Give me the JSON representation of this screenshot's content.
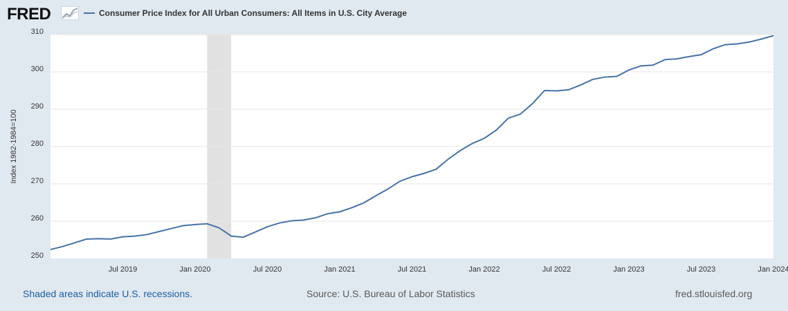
{
  "header": {
    "logo_text": "FRED",
    "series_title": "Consumer Price Index for All Urban Consumers: All Items in U.S. City Average"
  },
  "footer": {
    "note": "Shaded areas indicate U.S. recessions.",
    "source": "Source: U.S. Bureau of Labor Statistics",
    "site": "fred.stlouisfed.org"
  },
  "colors": {
    "background": "#e1e9f0",
    "plot_background": "#ffffff",
    "line": "#4572a7",
    "recession": "#e1e1e1",
    "gridline": "#e6e6e6",
    "link": "#1a5ea8"
  },
  "chart_data": {
    "type": "line",
    "title": "",
    "xlabel": "",
    "ylabel": "Index 1982-1984=100",
    "ylim": [
      250,
      310
    ],
    "yticks": [
      250,
      260,
      270,
      280,
      290,
      300,
      310
    ],
    "xlim": [
      "2019-01",
      "2024-01"
    ],
    "xticks": [
      {
        "date": "2019-07",
        "label": "Jul 2019"
      },
      {
        "date": "2020-01",
        "label": "Jan 2020"
      },
      {
        "date": "2020-07",
        "label": "Jul 2020"
      },
      {
        "date": "2021-01",
        "label": "Jan 2021"
      },
      {
        "date": "2021-07",
        "label": "Jul 2021"
      },
      {
        "date": "2022-01",
        "label": "Jan 2022"
      },
      {
        "date": "2022-07",
        "label": "Jul 2022"
      },
      {
        "date": "2023-01",
        "label": "Jan 2023"
      },
      {
        "date": "2023-07",
        "label": "Jul 2023"
      },
      {
        "date": "2024-01",
        "label": "Jan 2024"
      }
    ],
    "grid": true,
    "recessions": [
      {
        "start": "2020-02",
        "end": "2020-04"
      }
    ],
    "series": [
      {
        "name": "Consumer Price Index for All Urban Consumers: All Items in U.S. City Average",
        "x": [
          "2019-01",
          "2019-02",
          "2019-03",
          "2019-04",
          "2019-05",
          "2019-06",
          "2019-07",
          "2019-08",
          "2019-09",
          "2019-10",
          "2019-11",
          "2019-12",
          "2020-01",
          "2020-02",
          "2020-03",
          "2020-04",
          "2020-05",
          "2020-06",
          "2020-07",
          "2020-08",
          "2020-09",
          "2020-10",
          "2020-11",
          "2020-12",
          "2021-01",
          "2021-02",
          "2021-03",
          "2021-04",
          "2021-05",
          "2021-06",
          "2021-07",
          "2021-08",
          "2021-09",
          "2021-10",
          "2021-11",
          "2021-12",
          "2022-01",
          "2022-02",
          "2022-03",
          "2022-04",
          "2022-05",
          "2022-06",
          "2022-07",
          "2022-08",
          "2022-09",
          "2022-10",
          "2022-11",
          "2022-12",
          "2023-01",
          "2023-02",
          "2023-03",
          "2023-04",
          "2023-05",
          "2023-06",
          "2023-07",
          "2023-08",
          "2023-09",
          "2023-10",
          "2023-11",
          "2023-12",
          "2024-01"
        ],
        "values": [
          252.4,
          253.2,
          254.2,
          255.2,
          255.3,
          255.2,
          255.8,
          256.0,
          256.4,
          257.2,
          258.0,
          258.8,
          259.1,
          259.3,
          258.2,
          256.0,
          255.7,
          257.1,
          258.5,
          259.5,
          260.1,
          260.3,
          260.9,
          262.0,
          262.5,
          263.6,
          264.9,
          266.8,
          268.6,
          270.7,
          271.9,
          272.8,
          273.9,
          276.6,
          278.9,
          280.8,
          282.2,
          284.4,
          287.6,
          288.7,
          291.5,
          295.0,
          294.9,
          295.2,
          296.5,
          298.0,
          298.6,
          298.8,
          300.5,
          301.6,
          301.8,
          303.3,
          303.5,
          304.1,
          304.6,
          306.2,
          307.3,
          307.5,
          308.0,
          308.8,
          309.7
        ]
      }
    ]
  }
}
